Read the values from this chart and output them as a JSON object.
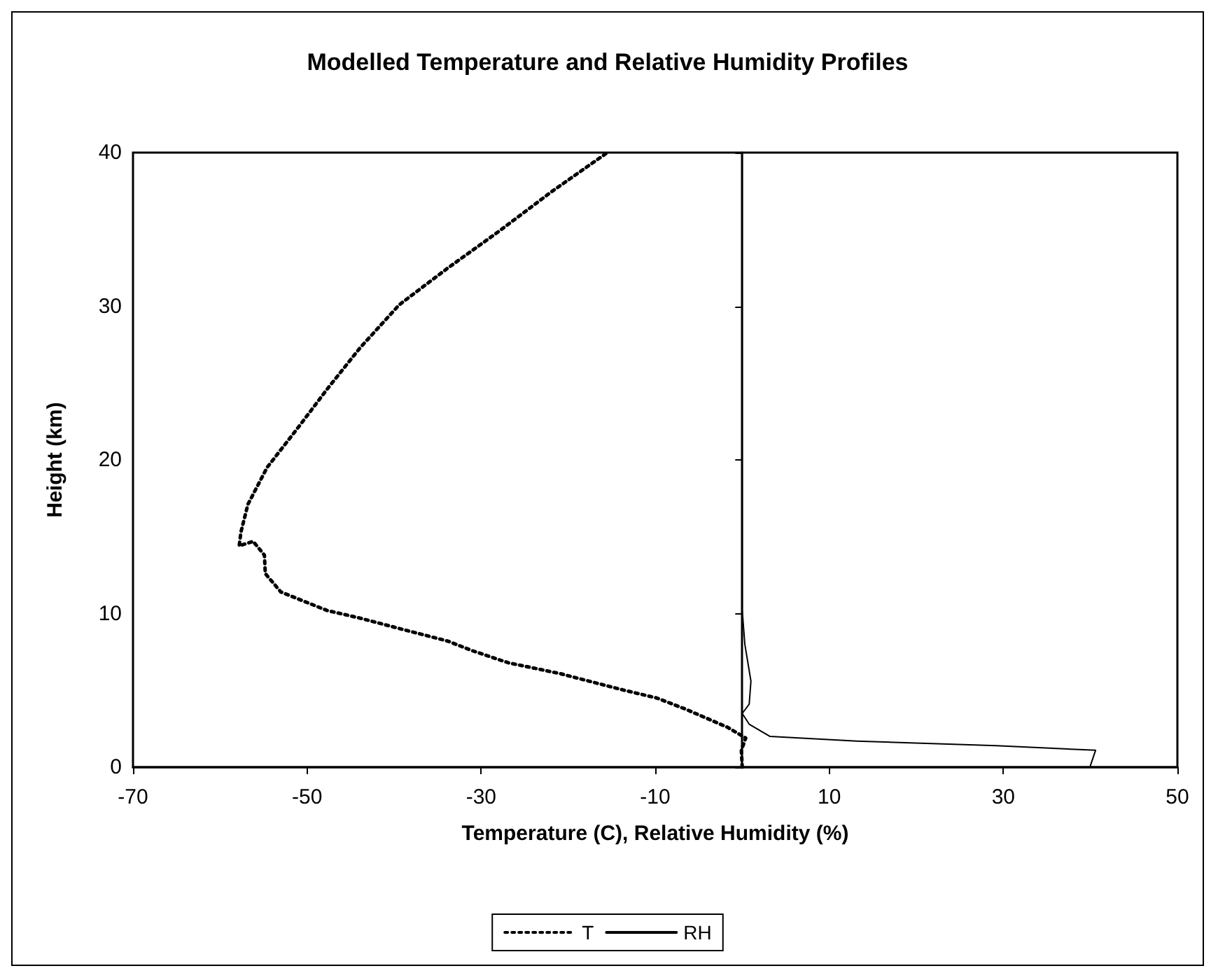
{
  "chart_data": {
    "type": "line",
    "title": "Modelled Temperature and Relative Humidity Profiles",
    "xlabel": "Temperature (C), Relative Humidity (%)",
    "ylabel": "Height (km)",
    "xlim": [
      -70,
      50
    ],
    "xticks": [
      -70,
      -50,
      -30,
      -10,
      10,
      30,
      50
    ],
    "ylim": [
      0,
      40
    ],
    "yticks": [
      0,
      10,
      20,
      30,
      40
    ],
    "grid": false,
    "legend": "bottom",
    "marker": "none",
    "series": [
      {
        "name": "T",
        "color": "#000000",
        "line_style": "dotted",
        "x": [
          0,
          -0.1,
          0.4,
          -1.7,
          -6.6,
          -9.8,
          -13.5,
          -21.0,
          -26.9,
          -31.1,
          -33.8,
          -39.9,
          -43.9,
          -47.7,
          -53.0,
          -54.8,
          -54.9,
          -56.2,
          -57.8,
          -57.6,
          -56.8,
          -54.6,
          -50.9,
          -47.7,
          -43.9,
          -39.4,
          -33.8,
          -27.9,
          -21.8,
          -15.5
        ],
        "values": [
          0,
          1.1,
          1.9,
          2.6,
          3.8,
          4.5,
          5.0,
          6.1,
          6.8,
          7.6,
          8.2,
          9.1,
          9.7,
          10.2,
          11.4,
          12.6,
          13.8,
          14.7,
          14.4,
          15.3,
          17.1,
          19.5,
          22.2,
          24.6,
          27.3,
          30.1,
          32.5,
          34.9,
          37.5,
          40
        ]
      },
      {
        "name": "RH",
        "color": "#000000",
        "line_style": "solid",
        "x": [
          40.0,
          40.6,
          29.2,
          13.2,
          3.2,
          0.8,
          0,
          0.8,
          1.0,
          0.3,
          0,
          0
        ],
        "values": [
          0.1,
          1.1,
          1.4,
          1.7,
          2.0,
          2.8,
          3.5,
          4.1,
          5.6,
          8.0,
          10.2,
          40
        ]
      }
    ]
  }
}
